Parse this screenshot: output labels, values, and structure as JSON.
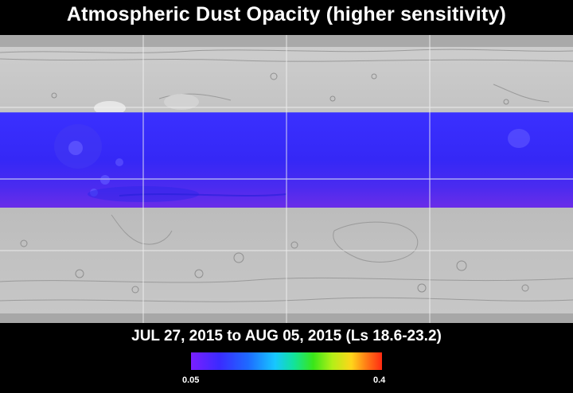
{
  "title": "Atmospheric Dust Opacity (higher sensitivity)",
  "date_range": "JUL 27, 2015 to AUG 05, 2015 (Ls 18.6-23.2)",
  "colorbar": {
    "min_label": "0.05",
    "max_label": "0.4",
    "colors": [
      "#7a1fff",
      "#3a2bff",
      "#1e6bff",
      "#17c7ff",
      "#12e39a",
      "#39e619",
      "#b4ef17",
      "#ffd51a",
      "#ff7a16",
      "#ff2a12"
    ]
  },
  "map": {
    "base": "shaded-relief-global-map",
    "overlay_color_dominant": "#3a2bff",
    "grid": true
  }
}
